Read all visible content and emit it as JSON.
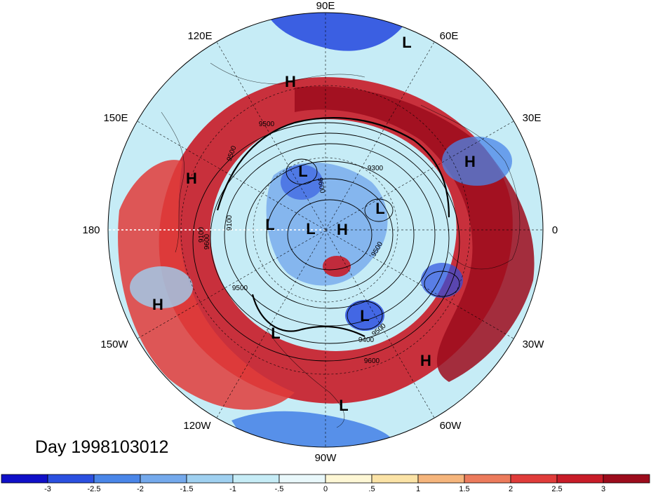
{
  "title": "Day 1998103012",
  "longitude_labels": [
    {
      "text": "90E"
    },
    {
      "text": "60E"
    },
    {
      "text": "30E"
    },
    {
      "text": "0"
    },
    {
      "text": "30W"
    },
    {
      "text": "60W"
    },
    {
      "text": "90W"
    },
    {
      "text": "120W"
    },
    {
      "text": "150W"
    },
    {
      "text": "180"
    },
    {
      "text": "150E"
    },
    {
      "text": "120E"
    }
  ],
  "pressure_centers": [
    {
      "type": "L"
    },
    {
      "type": "H"
    },
    {
      "type": "H"
    },
    {
      "type": "H"
    },
    {
      "type": "L"
    },
    {
      "type": "L"
    },
    {
      "type": "L"
    },
    {
      "type": "H"
    },
    {
      "type": "L"
    },
    {
      "type": "H"
    },
    {
      "type": "L"
    },
    {
      "type": "H"
    },
    {
      "type": "L"
    },
    {
      "type": "L"
    }
  ],
  "contour_labels": [
    "9500",
    "9500",
    "9300",
    "9600",
    "9100",
    "9100",
    "9600",
    "9500",
    "9400",
    "9500",
    "9600",
    "9500"
  ],
  "colorbar": {
    "tick_labels": [
      "-3",
      "-2.5",
      "-2",
      "-1.5",
      "-1",
      "-.5",
      "0",
      ".5",
      "1",
      "1.5",
      "2",
      "2.5",
      "3"
    ],
    "colors": [
      "#1010c8",
      "#2b50e0",
      "#4a86e8",
      "#74a9ec",
      "#9fd0f0",
      "#c6ecf6",
      "#e9f8fb",
      "#fef7d5",
      "#fbe3a6",
      "#f5b57c",
      "#ec7b5c",
      "#e03c3a",
      "#c81c28",
      "#9c0c1c"
    ]
  }
}
